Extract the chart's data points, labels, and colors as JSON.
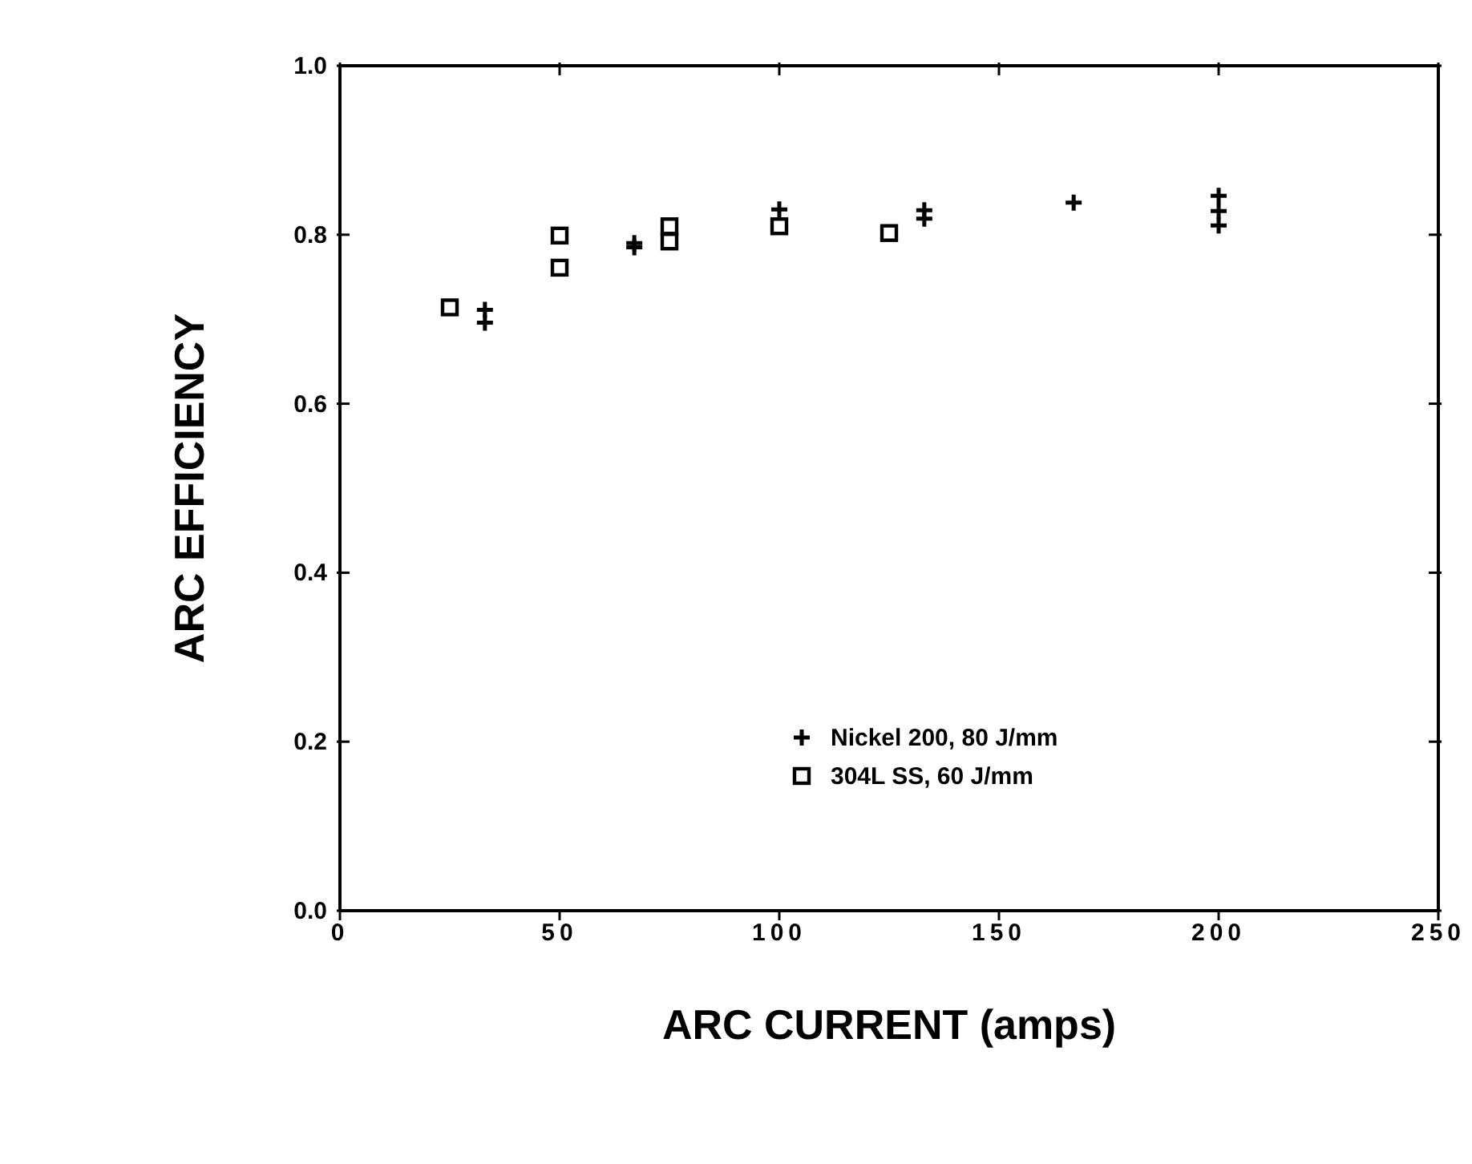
{
  "chart_data": {
    "type": "scatter",
    "xlabel": "ARC CURRENT (amps)",
    "ylabel": "ARC EFFICIENCY",
    "xlim": [
      0,
      250
    ],
    "xticks": [
      0,
      50,
      100,
      150,
      200,
      250
    ],
    "ylim": [
      0,
      1
    ],
    "yticks": [
      {
        "value": 0,
        "label": "0.0"
      },
      {
        "value": 0.2,
        "label": "0.2"
      },
      {
        "value": 0.4,
        "label": "0.4"
      },
      {
        "value": 0.6,
        "label": "0.6"
      },
      {
        "value": 0.8,
        "label": "0.8"
      },
      {
        "value": 1,
        "label": "1.0"
      }
    ],
    "legend": "bottom right",
    "series": [
      {
        "name": "Nickel 200, 80 J/mm",
        "color": "#000000",
        "marker": "cross",
        "x": [
          33,
          33,
          67,
          67,
          100,
          133,
          133,
          167,
          200,
          200,
          200
        ],
        "values": [
          0.711,
          0.696,
          0.79,
          0.785,
          0.83,
          0.829,
          0.819,
          0.838,
          0.846,
          0.828,
          0.811
        ]
      },
      {
        "name": "304L SS, 60 J/mm",
        "color": "#000000",
        "marker": "square",
        "x": [
          25,
          50,
          50,
          75,
          75,
          100,
          125
        ],
        "values": [
          0.714,
          0.799,
          0.761,
          0.81,
          0.792,
          0.81,
          0.802
        ]
      }
    ]
  }
}
